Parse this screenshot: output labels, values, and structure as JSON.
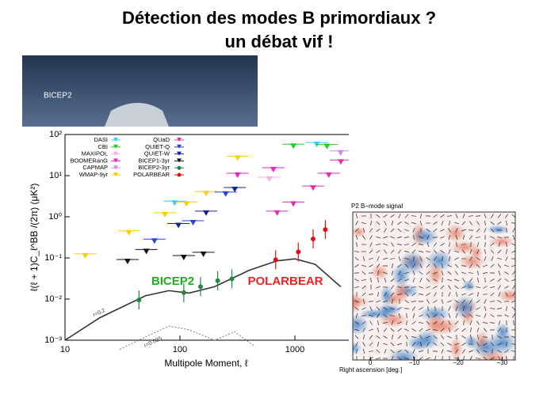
{
  "slide": {
    "title_lines": [
      "Détection des modes B primordiaux ?",
      "un débat vif !"
    ]
  },
  "photo": {
    "label": "BICEP2"
  },
  "chart_data": {
    "type": "scatter",
    "xlabel": "Multipole Moment, ℓ",
    "ylabel": "ℓ(ℓ + 1)C_ℓ^BB /(2π) (μK²)",
    "xscale": "log",
    "yscale": "log",
    "xlim": [
      10,
      3000
    ],
    "ylim": [
      0.001,
      100
    ],
    "xticks": [
      10,
      100,
      1000
    ],
    "yticks": [
      {
        "value": 100,
        "label": "10²"
      },
      {
        "value": 10,
        "label": "10¹"
      },
      {
        "value": 1,
        "label": "10⁰"
      },
      {
        "value": 0.1,
        "label": "10⁻¹"
      },
      {
        "value": 0.01,
        "label": "10⁻²"
      },
      {
        "value": 0.001,
        "label": "10⁻³"
      }
    ],
    "series": [
      {
        "name": "DASI",
        "color": "#33ccff",
        "marker": "triangle",
        "x": [
          90,
          1550
        ],
        "values": [
          2.1,
          56
        ]
      },
      {
        "name": "CBI",
        "color": "#22cc22",
        "marker": "triangle",
        "x": [
          970,
          1900
        ],
        "values": [
          51,
          50
        ]
      },
      {
        "name": "MAXIPOL",
        "color": "#ffaadd",
        "marker": "triangle",
        "x": [
          600
        ],
        "values": [
          8
        ]
      },
      {
        "name": "BOOMERanG",
        "color": "#ee22cc",
        "marker": "triangle",
        "x": [
          317,
          650
        ],
        "values": [
          10,
          13.6
        ]
      },
      {
        "name": "CAPMAP",
        "color": "#cc88ee",
        "marker": "triangle",
        "x": [
          2500
        ],
        "values": [
          35
        ]
      },
      {
        "name": "WMAP-9yr",
        "color": "#ffcc00",
        "marker": "triangle",
        "x": [
          15,
          36,
          74,
          114,
          169,
          317
        ],
        "values": [
          0.11,
          0.4,
          1.1,
          2.0,
          3.6,
          26
        ]
      },
      {
        "name": "QUaD",
        "color": "#dd33aa",
        "marker": "triangle",
        "x": [
          700,
          970,
          1440,
          1970,
          2510
        ],
        "values": [
          1.2,
          2.0,
          4.9,
          10,
          21
        ]
      },
      {
        "name": "QUIET-Q",
        "color": "#2244dd",
        "marker": "triangle",
        "x": [
          60,
          130,
          250
        ],
        "values": [
          0.25,
          0.7,
          3.5
        ]
      },
      {
        "name": "QUIET-W",
        "color": "#1122aa",
        "marker": "triangle",
        "x": [
          97,
          169,
          300
        ],
        "values": [
          0.6,
          1.2,
          4.5
        ]
      },
      {
        "name": "BICEP1-3yr",
        "color": "#111111",
        "marker": "triangle",
        "x": [
          35,
          51,
          108,
          160
        ],
        "values": [
          0.08,
          0.14,
          0.1,
          0.12
        ]
      },
      {
        "name": "BICEP2-3yr",
        "color": "#228844",
        "marker": "circle",
        "x": [
          44,
          108,
          151,
          213,
          283
        ],
        "values": [
          0.0095,
          0.0143,
          0.02,
          0.028,
          0.031
        ]
      },
      {
        "name": "POLARBEAR",
        "color": "#dd1111",
        "marker": "circle",
        "x": [
          680,
          1070,
          1440,
          1840
        ],
        "values": [
          0.09,
          0.14,
          0.29,
          0.49
        ]
      }
    ],
    "curves": [
      {
        "label": "r=0.2",
        "x": [
          10,
          20,
          50,
          80,
          120,
          200,
          400,
          700,
          1000,
          1500,
          2500
        ],
        "values": [
          0.001,
          0.0035,
          0.012,
          0.016,
          0.014,
          0.02,
          0.05,
          0.085,
          0.095,
          0.07,
          0.02
        ]
      },
      {
        "label": "r=0.025",
        "x": [
          30,
          50,
          80,
          120,
          200,
          300,
          450
        ],
        "values": [
          0.0006,
          0.0012,
          0.0022,
          0.0018,
          0.001,
          0.0016,
          0.0007
        ]
      }
    ],
    "annotations": [
      {
        "text": "BICEP2",
        "color": "#22aa22"
      },
      {
        "text": "POLARBEAR",
        "color": "#ee2222"
      }
    ]
  },
  "map": {
    "title": "P2 B−mode signal",
    "xlabel": "Right ascension [deg.]",
    "xlim": [
      4,
      -33
    ],
    "xticks": [
      0,
      {
        "value": -10,
        "label": "−10"
      },
      {
        "value": -20,
        "label": "−20"
      },
      {
        "value": -30,
        "label": "−30"
      }
    ]
  }
}
